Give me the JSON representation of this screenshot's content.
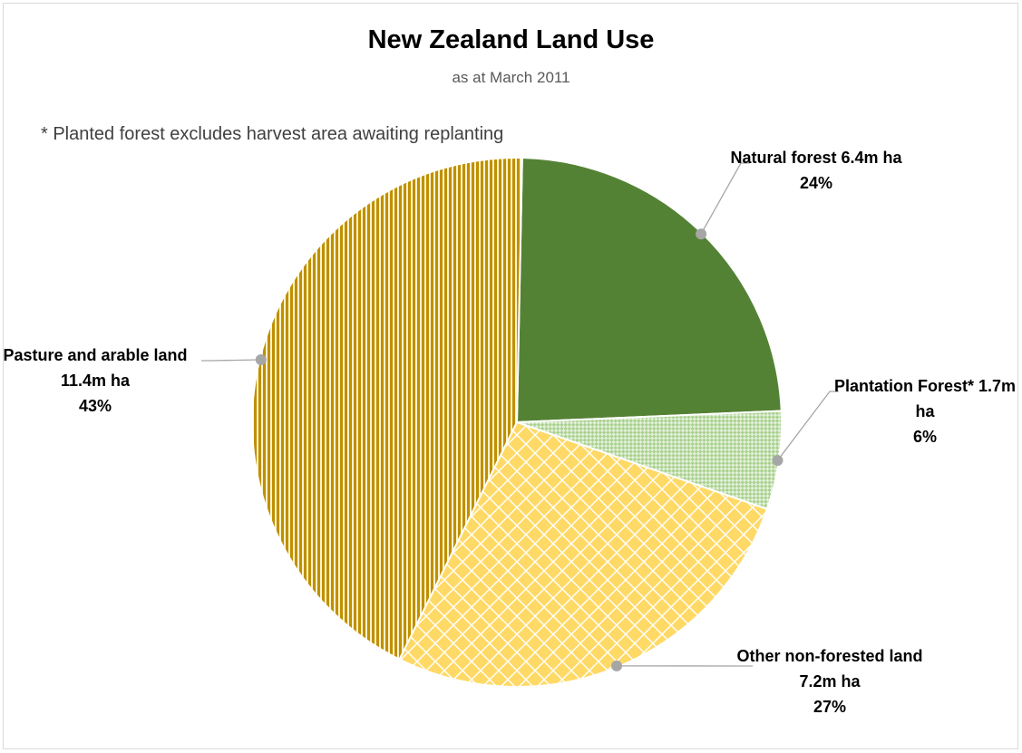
{
  "chart_data": {
    "type": "pie",
    "title": "New Zealand Land Use",
    "subtitle": "as at March 2011",
    "note": "* Planted forest excludes harvest area awaiting replanting",
    "slices": [
      {
        "name": "Natural forest",
        "value": 6.4,
        "unit": "m ha",
        "percent": 24,
        "label_text": "Natural forest 6.4m ha",
        "percent_label": "24%",
        "color": "#548235",
        "pattern": "solid"
      },
      {
        "name": "Plantation Forest*",
        "value": 1.7,
        "unit": "m ha",
        "percent": 6,
        "label_text": "Plantation Forest* 1.7m ha",
        "percent_label": "6%",
        "color": "#a9d18e",
        "pattern": "small-checker"
      },
      {
        "name": "Other non-forested land",
        "value": 7.2,
        "unit": "m ha",
        "percent": 27,
        "label_text": "Other non-forested land 7.2m ha",
        "percent_label": "27%",
        "color": "#ffd966",
        "pattern": "diamond-checker"
      },
      {
        "name": "Pasture and arable land",
        "value": 11.4,
        "unit": "m ha",
        "percent": 43,
        "label_text": "Pasture and arable land 11.4m ha",
        "percent_label": "43%",
        "color": "#bf9000",
        "pattern": "vertical-stripes"
      }
    ],
    "start_angle_deg": 0,
    "direction": "clockwise",
    "legend": "none",
    "data_labels": "outside with leader lines"
  }
}
